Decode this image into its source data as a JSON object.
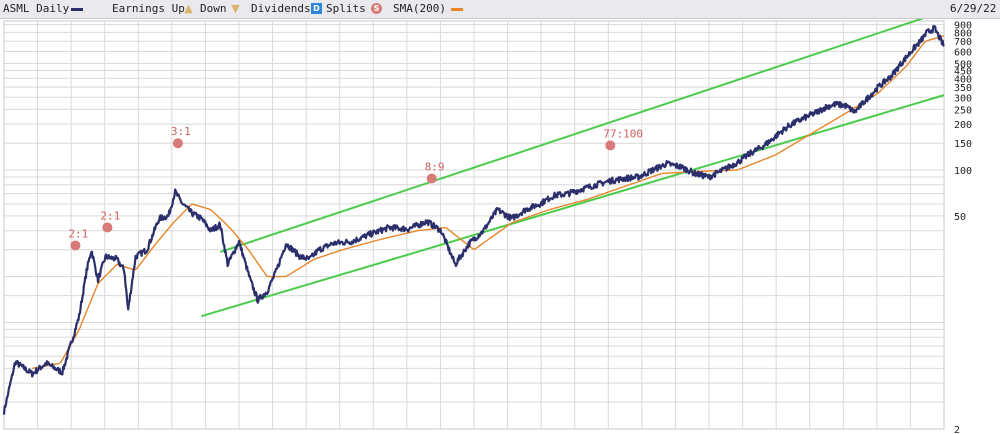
{
  "legend": {
    "title": "ASML Daily",
    "earnings_up": "Earnings Up",
    "down": "Down",
    "dividends": "Dividends",
    "splits": "Splits",
    "sma": "SMA(200)",
    "date": "6/29/22",
    "dividend_marker": "D",
    "split_marker": "S"
  },
  "colors": {
    "price": "#2b2f6b",
    "sma": "#e8862a",
    "channel": "#4ccc4c",
    "earnings": "#d9b46a",
    "dividend": "#2e86de",
    "split": "#d97a7a",
    "grid": "#d9d9d9"
  },
  "chart_data": {
    "type": "line",
    "scale": "log",
    "y_ticks": [
      2,
      50,
      100,
      150,
      200,
      250,
      300,
      350,
      400,
      450,
      500,
      600,
      700,
      800,
      900
    ],
    "y_tick_labels": [
      "2",
      "50",
      "100",
      "150",
      "200",
      "250",
      "300",
      "350",
      "400",
      "450",
      "500",
      "600",
      "700",
      "800",
      "900"
    ],
    "ylim": [
      2,
      950
    ],
    "grid": true,
    "splits": [
      {
        "label": "2:1",
        "t": 0.076,
        "y": 32
      },
      {
        "label": "2:1",
        "t": 0.11,
        "y": 42
      },
      {
        "label": "3:1",
        "t": 0.185,
        "y": 150
      },
      {
        "label": "8:9",
        "t": 0.455,
        "y": 88
      },
      {
        "label": "77:100",
        "t": 0.645,
        "y": 145
      }
    ],
    "series": [
      {
        "name": "ASML Daily",
        "t": [
          0,
          0.012,
          0.03,
          0.045,
          0.062,
          0.072,
          0.08,
          0.088,
          0.093,
          0.1,
          0.108,
          0.12,
          0.128,
          0.132,
          0.14,
          0.152,
          0.165,
          0.175,
          0.182,
          0.19,
          0.2,
          0.21,
          0.22,
          0.23,
          0.238,
          0.25,
          0.262,
          0.27,
          0.28,
          0.29,
          0.3,
          0.315,
          0.325,
          0.335,
          0.35,
          0.37,
          0.39,
          0.41,
          0.43,
          0.45,
          0.465,
          0.48,
          0.495,
          0.51,
          0.525,
          0.54,
          0.555,
          0.57,
          0.585,
          0.6,
          0.615,
          0.63,
          0.645,
          0.66,
          0.675,
          0.69,
          0.705,
          0.72,
          0.735,
          0.75,
          0.765,
          0.78,
          0.795,
          0.805,
          0.815,
          0.825,
          0.835,
          0.845,
          0.855,
          0.865,
          0.875,
          0.885,
          0.895,
          0.905,
          0.915,
          0.922,
          0.93,
          0.937,
          0.945,
          0.952,
          0.96,
          0.967,
          0.975,
          0.982,
          0.99,
          1.0
        ],
        "values": [
          2.6,
          5.5,
          4.6,
          5.4,
          4.7,
          7.5,
          11,
          22,
          30,
          19,
          27,
          26,
          22,
          12,
          27,
          30,
          48,
          50,
          72,
          60,
          52,
          48,
          40,
          44,
          24,
          34,
          19,
          14,
          16,
          22,
          33,
          27,
          26,
          30,
          33,
          34,
          38,
          42,
          41,
          46,
          40,
          24,
          33,
          40,
          55,
          48,
          55,
          60,
          68,
          70,
          75,
          80,
          85,
          88,
          90,
          100,
          110,
          105,
          95,
          90,
          100,
          112,
          130,
          140,
          155,
          175,
          195,
          210,
          225,
          240,
          260,
          270,
          265,
          240,
          280,
          310,
          350,
          380,
          420,
          480,
          550,
          620,
          700,
          800,
          850,
          650
        ]
      },
      {
        "name": "SMA(200)",
        "t": [
          0.03,
          0.06,
          0.08,
          0.1,
          0.12,
          0.14,
          0.16,
          0.18,
          0.2,
          0.22,
          0.24,
          0.26,
          0.28,
          0.3,
          0.33,
          0.36,
          0.4,
          0.44,
          0.47,
          0.5,
          0.54,
          0.58,
          0.62,
          0.66,
          0.7,
          0.74,
          0.78,
          0.82,
          0.86,
          0.9,
          0.93,
          0.96,
          0.98,
          1.0
        ],
        "values": [
          5.0,
          5.4,
          9,
          18,
          24,
          22,
          32,
          45,
          60,
          55,
          42,
          30,
          20,
          20,
          26,
          30,
          35,
          40,
          42,
          30,
          45,
          55,
          64,
          78,
          95,
          98,
          100,
          125,
          175,
          245,
          320,
          480,
          700,
          760
        ]
      }
    ],
    "channel": {
      "upper": {
        "t": [
          0.23,
          1.0
        ],
        "values": [
          29,
          1100
        ]
      },
      "lower": {
        "t": [
          0.21,
          1.0
        ],
        "values": [
          11,
          310
        ]
      }
    }
  }
}
